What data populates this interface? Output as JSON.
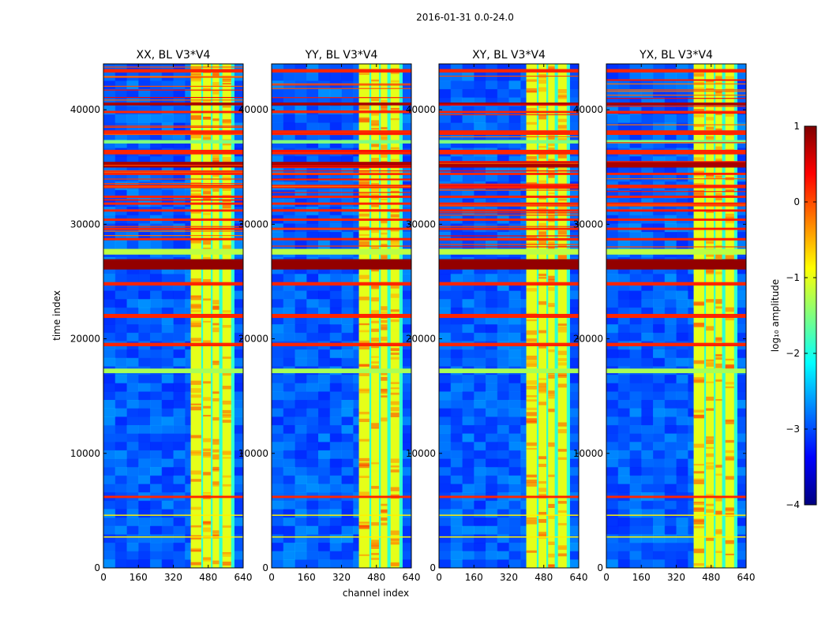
{
  "chart_data": {
    "type": "heatmap",
    "suptitle": "2016-01-31 0.0-24.0",
    "xlabel": "channel index",
    "ylabel": "time index",
    "xlim": [
      0,
      640
    ],
    "ylim": [
      0,
      44000
    ],
    "xticks": [
      "0",
      "160",
      "320",
      "480",
      "640"
    ],
    "xtick_values": [
      0,
      160,
      320,
      480,
      640
    ],
    "yticks": [
      "0",
      "10000",
      "20000",
      "30000",
      "40000"
    ],
    "ytick_values": [
      0,
      10000,
      20000,
      30000,
      40000
    ],
    "panels": [
      {
        "title": "XX, BL V3*V4",
        "overlap_offset": 0
      },
      {
        "title": "YY, BL V3*V4",
        "overlap_offset": 1
      },
      {
        "title": "XY, BL V3*V4",
        "overlap_offset": 1
      },
      {
        "title": "YX, BL V3*V4",
        "overlap_offset": 1
      }
    ],
    "colorbar": {
      "label": "log₁₀ amplitude",
      "range": [
        -4,
        1
      ],
      "ticks": [
        "1",
        "0",
        "−1",
        "−2",
        "−3",
        "−4"
      ],
      "tick_values": [
        1,
        0,
        -1,
        -2,
        -3,
        -4
      ],
      "colormap": [
        "#00007f",
        "#0000ff",
        "#007fff",
        "#00ffff",
        "#7fff7f",
        "#ffff00",
        "#ff7f00",
        "#ff0000",
        "#7f0000"
      ]
    },
    "rfi_bands": {
      "channel_range": [
        400,
        600
      ],
      "sub_bands": [
        [
          400,
          448
        ],
        [
          456,
          492
        ],
        [
          500,
          530
        ],
        [
          545,
          585
        ]
      ],
      "value": -1.0
    },
    "time_flags": [
      {
        "t": 43400,
        "dt": 300,
        "value": 0.2
      },
      {
        "t": 40500,
        "dt": 250,
        "value": 0.8
      },
      {
        "t": 39800,
        "dt": 200,
        "value": 0.2
      },
      {
        "t": 38000,
        "dt": 400,
        "value": 0.2
      },
      {
        "t": 37200,
        "dt": 300,
        "value": -1.5
      },
      {
        "t": 36300,
        "dt": 400,
        "value": 0.2
      },
      {
        "t": 35200,
        "dt": 500,
        "value": 0.8
      },
      {
        "t": 34400,
        "dt": 200,
        "value": 0.2
      },
      {
        "t": 33300,
        "dt": 300,
        "value": 0.2
      },
      {
        "t": 32400,
        "dt": 200,
        "value": 0.2
      },
      {
        "t": 31800,
        "dt": 200,
        "value": 0.2
      },
      {
        "t": 31200,
        "dt": 200,
        "value": 0.2
      },
      {
        "t": 30400,
        "dt": 200,
        "value": 0.2
      },
      {
        "t": 29600,
        "dt": 200,
        "value": 0.2
      },
      {
        "t": 28700,
        "dt": 200,
        "value": 0.2
      },
      {
        "t": 27600,
        "dt": 500,
        "value": -1.2
      },
      {
        "t": 26500,
        "dt": 900,
        "value": 0.9
      },
      {
        "t": 24800,
        "dt": 300,
        "value": 0.2
      },
      {
        "t": 22000,
        "dt": 350,
        "value": 0.2
      },
      {
        "t": 19500,
        "dt": 300,
        "value": 0.2
      },
      {
        "t": 17200,
        "dt": 400,
        "value": -1.3
      },
      {
        "t": 6200,
        "dt": 200,
        "value": 0.2
      },
      {
        "t": 4600,
        "dt": 100,
        "value": -0.8
      },
      {
        "t": 2700,
        "dt": 100,
        "value": -0.8
      }
    ]
  }
}
